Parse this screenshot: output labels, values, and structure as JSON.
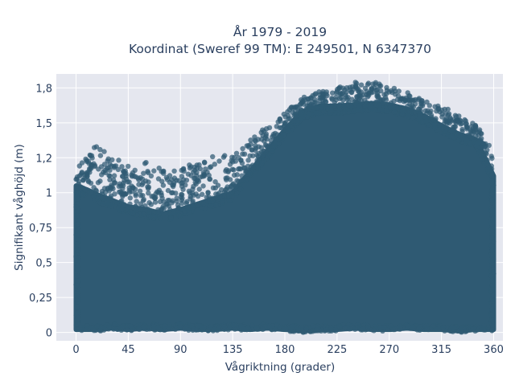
{
  "chart_data": {
    "type": "scatter",
    "title": [
      "År 1979 - 2019",
      "Koordinat (Sweref 99 TM): E 249501, N 6347370"
    ],
    "xlabel": "Vågriktning (grader)",
    "ylabel": "Signifikant våghöjd (m)",
    "xlim": [
      -17,
      368
    ],
    "ylim": [
      -0.06,
      1.85
    ],
    "xticks": [
      0,
      45,
      90,
      135,
      180,
      225,
      270,
      315,
      360
    ],
    "xtick_labels": [
      "0",
      "45",
      "90",
      "135",
      "180",
      "225",
      "270",
      "315",
      "360"
    ],
    "yticks": [
      0,
      0.25,
      0.5,
      0.75,
      1,
      1.25,
      1.5,
      1.75
    ],
    "ytick_labels": [
      "0",
      "0,25",
      "0,5",
      "0,75",
      "1",
      "1,2",
      "1,5",
      "1,8"
    ],
    "grid": true,
    "legend": "none",
    "marker_color": "#2f5a73",
    "background": "#e5e7ef",
    "envelope": {
      "description_points_x": [
        0,
        10,
        20,
        30,
        45,
        60,
        75,
        90,
        105,
        120,
        135,
        150,
        165,
        180,
        195,
        210,
        225,
        240,
        255,
        270,
        285,
        300,
        315,
        330,
        345,
        360
      ],
      "upper_dense_y": [
        1.05,
        1.02,
        0.98,
        0.95,
        0.9,
        0.88,
        0.85,
        0.88,
        0.92,
        0.96,
        1.0,
        1.15,
        1.3,
        1.45,
        1.58,
        1.62,
        1.62,
        1.63,
        1.64,
        1.63,
        1.6,
        1.55,
        1.48,
        1.42,
        1.38,
        1.12
      ],
      "upper_outlier_y": [
        1.33,
        1.3,
        1.35,
        1.28,
        1.2,
        1.22,
        1.17,
        1.18,
        1.22,
        1.28,
        1.27,
        1.4,
        1.47,
        1.57,
        1.68,
        1.73,
        1.75,
        1.79,
        1.8,
        1.76,
        1.72,
        1.66,
        1.62,
        1.56,
        1.49,
        1.3
      ],
      "lower_y": [
        0.02,
        0.02,
        0.02,
        0.03,
        0.02,
        0.03,
        0.02,
        0.03,
        0.02,
        0.02,
        0.03,
        0.02,
        0.03,
        0.02,
        0.01,
        0.02,
        0.02,
        0.03,
        0.02,
        0.02,
        0.03,
        0.02,
        0.02,
        0.01,
        0.02,
        0.02
      ]
    }
  }
}
